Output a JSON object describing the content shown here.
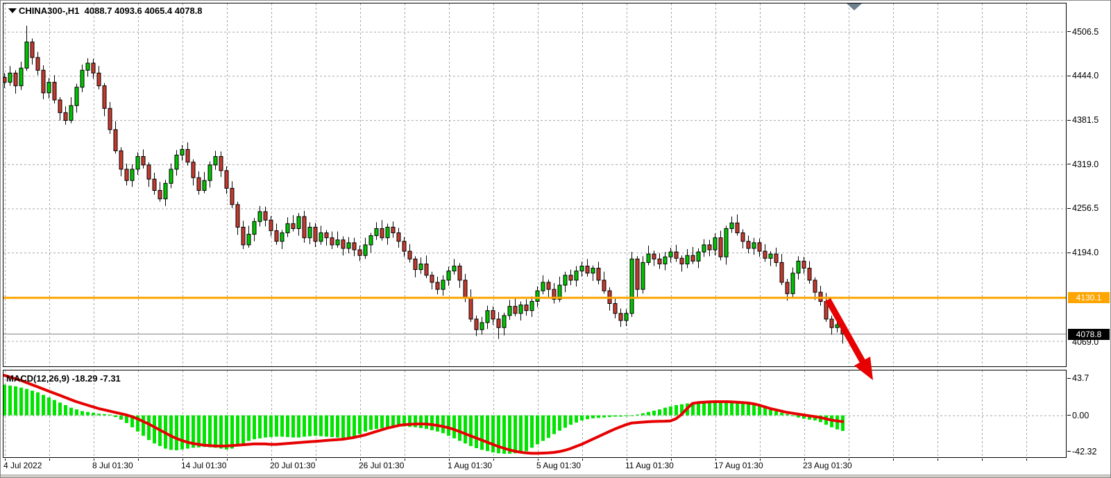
{
  "window": {
    "title_symbol": "CHINA300-,H1",
    "title_values": "4088.7 4093.6 4065.4 4078.8"
  },
  "indicator_label": {
    "name": "MACD(12,26,9)",
    "main": "-18.29",
    "signal": "-7.31"
  },
  "price_axis": {
    "orange_badge": "4130.1",
    "current_badge": "4078.8",
    "extra_label": "4069.0"
  },
  "colors": {
    "bull": "#00c400",
    "bear": "#c43a2f",
    "candle_border": "#000000",
    "hist": "#00e400",
    "signal_line": "#e60000",
    "orange_line": "#ffa500",
    "current_line": "#808080",
    "grid": "#a8a8a8",
    "marker": "#6e7f8d",
    "arrow": "#e60000",
    "badge_current_bg": "#000000"
  },
  "chart_data": [
    {
      "type": "candlestick",
      "title": "CHINA300-,H1",
      "last_ohlc": {
        "open": 4088.7,
        "high": 4093.6,
        "low": 4065.4,
        "close": 4078.8
      },
      "y_tick_labels": [
        "4506.5",
        "4444.0",
        "4381.5",
        "4319.0",
        "4256.5",
        "4194.0"
      ],
      "extra_grid_label": "4069.0",
      "ylim": [
        4035,
        4542
      ],
      "x_labels": [
        "4 Jul 2022",
        "8 Jul 01:30",
        "14 Jul 01:30",
        "20 Jul 01:30",
        "26 Jul 01:30",
        "1 Aug 01:30",
        "5 Aug 01:30",
        "11 Aug 01:30",
        "17 Aug 01:30",
        "23 Aug 01:30"
      ],
      "hline_price": 4130.1,
      "current_price": 4078.8,
      "first_open": 4442,
      "closes": [
        4435,
        4448,
        4430,
        4455,
        4492,
        4470,
        4452,
        4420,
        4435,
        4410,
        4392,
        4381,
        4402,
        4428,
        4452,
        4462,
        4448,
        4430,
        4398,
        4368,
        4338,
        4312,
        4296,
        4312,
        4330,
        4318,
        4298,
        4282,
        4270,
        4292,
        4312,
        4332,
        4340,
        4322,
        4300,
        4282,
        4296,
        4318,
        4330,
        4310,
        4285,
        4262,
        4230,
        4205,
        4220,
        4238,
        4252,
        4240,
        4225,
        4210,
        4222,
        4235,
        4228,
        4245,
        4215,
        4230,
        4210,
        4222,
        4215,
        4205,
        4212,
        4200,
        4208,
        4198,
        4190,
        4205,
        4218,
        4228,
        4215,
        4230,
        4222,
        4210,
        4196,
        4185,
        4170,
        4178,
        4162,
        4152,
        4142,
        4155,
        4168,
        4175,
        4155,
        4130,
        4100,
        4085,
        4095,
        4112,
        4100,
        4088,
        4105,
        4118,
        4108,
        4120,
        4112,
        4125,
        4140,
        4152,
        4142,
        4128,
        4148,
        4162,
        4155,
        4168,
        4175,
        4165,
        4172,
        4155,
        4140,
        4122,
        4108,
        4098,
        4108,
        4185,
        4142,
        4180,
        4192,
        4185,
        4178,
        4188,
        4195,
        4186,
        4178,
        4190,
        4182,
        4195,
        4205,
        4198,
        4215,
        4188,
        4228,
        4236,
        4222,
        4210,
        4200,
        4208,
        4196,
        4186,
        4192,
        4180,
        4152,
        4136,
        4165,
        4182,
        4172,
        4155,
        4138,
        4125,
        4100,
        4088,
        4092,
        4078.8
      ],
      "wick_up": [
        6,
        10,
        4,
        9,
        12,
        5,
        8,
        7
      ],
      "wick_dn": [
        8,
        5,
        11,
        6,
        4,
        10,
        7,
        9
      ],
      "overrides": {
        "4": {
          "high": 4515
        },
        "85": {
          "low": 4076
        },
        "89": {
          "low": 4072
        },
        "151": {
          "open": 4088.7,
          "high": 4093.6,
          "low": 4065.4,
          "close": 4078.8
        }
      }
    },
    {
      "type": "macd",
      "label": "MACD(12,26,9)",
      "main_value": -18.29,
      "signal_value": -7.31,
      "y_tick_labels": [
        "43.7",
        "0.00",
        "-42.32"
      ],
      "ylim": [
        -49,
        53
      ],
      "histogram": [
        36,
        35,
        34,
        32.5,
        31,
        29,
        27,
        24,
        21,
        18,
        15,
        12,
        9,
        7,
        5,
        4,
        3,
        2,
        1.5,
        1,
        -2,
        -5,
        -9,
        -14,
        -19,
        -24,
        -29,
        -33,
        -36,
        -39,
        -40.5,
        -41,
        -40,
        -39,
        -38,
        -37.5,
        -37,
        -37.5,
        -38,
        -39,
        -40,
        -39,
        -36,
        -33,
        -30,
        -28,
        -27,
        -26,
        -25.5,
        -25,
        -25,
        -25.5,
        -26,
        -26,
        -25,
        -24.5,
        -24,
        -24.5,
        -25,
        -25.5,
        -26,
        -26.5,
        -27,
        -25,
        -22,
        -19,
        -17,
        -16,
        -15,
        -14,
        -13.5,
        -13,
        -13,
        -13.5,
        -14,
        -15,
        -16,
        -17.5,
        -19,
        -21,
        -24,
        -27,
        -30,
        -33,
        -36,
        -38.5,
        -40.5,
        -42,
        -43.5,
        -44.5,
        -45,
        -45,
        -44.5,
        -43.5,
        -42,
        -38,
        -34,
        -30,
        -26.5,
        -22,
        -18,
        -14.5,
        -11,
        -8.5,
        -6,
        -4.5,
        -3.5,
        -3,
        -2.5,
        -2,
        -1.5,
        -1.5,
        -1,
        -0.5,
        1,
        2.5,
        4,
        5.5,
        7,
        9,
        10.5,
        12,
        13,
        14,
        15,
        15.5,
        16,
        16.5,
        17,
        17,
        17.5,
        17,
        16.5,
        16,
        15,
        13,
        11,
        9,
        7,
        5,
        3,
        1.5,
        -1,
        -2.5,
        -4,
        -5,
        -6,
        -8,
        -11,
        -14,
        -16.5,
        -18.29
      ],
      "signal": [
        47,
        45,
        43,
        41,
        38.5,
        36,
        33.5,
        31,
        28.5,
        26,
        23.5,
        21,
        18.5,
        16,
        14,
        12,
        10,
        8,
        6.5,
        5,
        3.5,
        2,
        0.5,
        -1.5,
        -4,
        -7,
        -10,
        -13.5,
        -17,
        -20.5,
        -24,
        -27,
        -29.5,
        -31.5,
        -33,
        -34,
        -35,
        -35.5,
        -36,
        -36,
        -36,
        -35.5,
        -35,
        -34.5,
        -34,
        -33.5,
        -33.5,
        -33.5,
        -34,
        -34,
        -33.5,
        -33,
        -32.5,
        -32,
        -31.5,
        -31,
        -30.5,
        -30,
        -29.5,
        -29,
        -28.5,
        -28,
        -27,
        -26,
        -24.5,
        -23,
        -21,
        -19,
        -17,
        -15,
        -13.5,
        -12,
        -11,
        -10.5,
        -10.2,
        -10,
        -10.2,
        -10.8,
        -11.8,
        -13,
        -14.5,
        -16.5,
        -19,
        -21.5,
        -24,
        -26.5,
        -29,
        -31.5,
        -34,
        -36.5,
        -38.5,
        -40.5,
        -42,
        -43.2,
        -44,
        -44.5,
        -44.5,
        -44.3,
        -44,
        -43.5,
        -42.5,
        -41,
        -39,
        -36.5,
        -34,
        -31,
        -28,
        -25,
        -22,
        -19,
        -16,
        -13.5,
        -11,
        -9,
        -8.5,
        -8,
        -7.5,
        -7.2,
        -7,
        -6.8,
        -6.5,
        -4,
        1,
        8,
        14,
        15,
        15.5,
        15.8,
        16,
        16,
        16,
        15.8,
        15.5,
        15,
        14.5,
        13.5,
        12,
        10,
        8,
        6.5,
        5,
        3.5,
        2.5,
        1.5,
        0.5,
        -0.5,
        -1.5,
        -2.5,
        -4,
        -5.5,
        -6.5,
        -7.31
      ]
    }
  ]
}
